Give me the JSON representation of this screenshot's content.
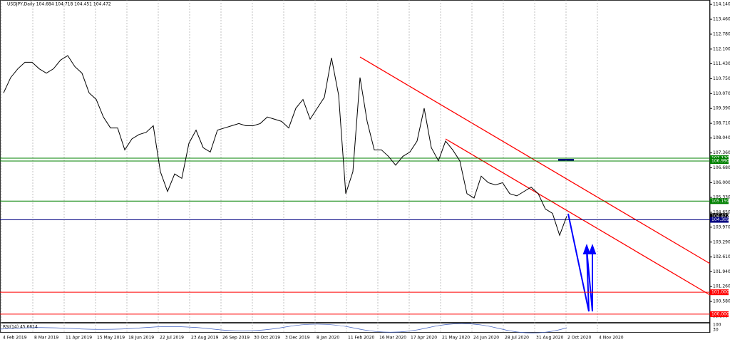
{
  "chart_data": {
    "type": "line",
    "title": "USDJPY,Daily 104.684 104.718 104.451 104.472",
    "indicator_label": "RSI(14) 45.6614",
    "indicator_ticks": [
      "100",
      "30"
    ],
    "x_labels": [
      "4 Feb 2019",
      "8 Mar 2019",
      "11 Apr 2019",
      "15 May 2019",
      "18 Jun 2019",
      "22 Jul 2019",
      "23 Aug 2019",
      "26 Sep 2019",
      "30 Oct 2019",
      "3 Dec 2019",
      "8 Jan 2020",
      "11 Feb 2020",
      "16 Mar 2020",
      "17 Apr 2020",
      "21 May 2020",
      "24 Jun 2020",
      "28 Jul 2020",
      "31 Aug 2020",
      "2 Oct 2020",
      "4 Nov 2020"
    ],
    "series": [
      {
        "color": "#000000",
        "values": [
          110.1,
          110.8,
          111.2,
          111.5,
          111.5,
          111.2,
          111.0,
          111.2,
          111.6,
          111.8,
          111.3,
          111.0,
          110.1,
          109.8,
          109.0,
          108.5,
          108.5,
          107.5,
          108.0,
          108.2,
          108.3,
          108.6,
          106.5,
          105.6,
          106.4,
          106.2,
          107.8,
          108.4,
          107.6,
          107.4,
          108.4,
          108.5,
          108.6,
          108.7,
          108.6,
          108.6,
          108.7,
          109.0,
          108.9,
          108.8,
          108.5,
          109.4,
          109.8,
          108.9,
          109.4,
          109.9,
          111.7,
          110.0,
          105.5,
          106.5,
          110.8,
          108.8,
          107.5,
          107.5,
          107.2,
          106.8,
          107.2,
          107.4,
          107.9,
          109.4,
          107.6,
          107.0,
          107.9,
          107.5,
          107.0,
          105.5,
          105.3,
          106.3,
          106.0,
          105.9,
          106.0,
          105.5,
          105.4,
          105.6,
          105.8,
          105.5,
          104.8,
          104.6,
          103.6,
          104.472
        ]
      }
    ],
    "ylim": [
      99.64,
      114.34
    ],
    "yticks": [
      {
        "value": 114.14,
        "label": "114.140"
      },
      {
        "value": 113.46,
        "label": "113.460"
      },
      {
        "value": 112.78,
        "label": "112.780"
      },
      {
        "value": 112.1,
        "label": "112.100"
      },
      {
        "value": 111.43,
        "label": "111.430"
      },
      {
        "value": 110.75,
        "label": "110.750"
      },
      {
        "value": 110.07,
        "label": "110.070"
      },
      {
        "value": 109.39,
        "label": "109.390"
      },
      {
        "value": 108.71,
        "label": "108.710"
      },
      {
        "value": 108.04,
        "label": "108.040"
      },
      {
        "value": 107.36,
        "label": "107.360"
      },
      {
        "value": 106.68,
        "label": "106.680"
      },
      {
        "value": 106,
        "label": "106.000"
      },
      {
        "value": 105.33,
        "label": "105.330"
      },
      {
        "value": 104.65,
        "label": "104.650"
      },
      {
        "value": 103.97,
        "label": "103.970"
      },
      {
        "value": 103.29,
        "label": "103.290"
      },
      {
        "value": 102.61,
        "label": "102.610"
      },
      {
        "value": 101.94,
        "label": "101.940"
      },
      {
        "value": 101.26,
        "label": "101.260"
      },
      {
        "value": 100.58,
        "label": "100.580"
      },
      {
        "value": 99.9,
        "label": "99.900"
      }
    ],
    "levels": [
      {
        "value": 107.12,
        "label": "107.120",
        "color": "#008000"
      },
      {
        "value": 106.99,
        "label": "106.990",
        "color": "#008000"
      },
      {
        "value": 105.159,
        "label": "105.159",
        "color": "#008000"
      },
      {
        "value": 104.472,
        "label": "104.472",
        "color": "#000000"
      },
      {
        "value": 104.305,
        "label": "104.305",
        "color": "#000080"
      },
      {
        "value": 101,
        "label": "101.000",
        "color": "#ff0000"
      },
      {
        "value": 100,
        "label": "100.000",
        "color": "#ff0000"
      }
    ]
  }
}
